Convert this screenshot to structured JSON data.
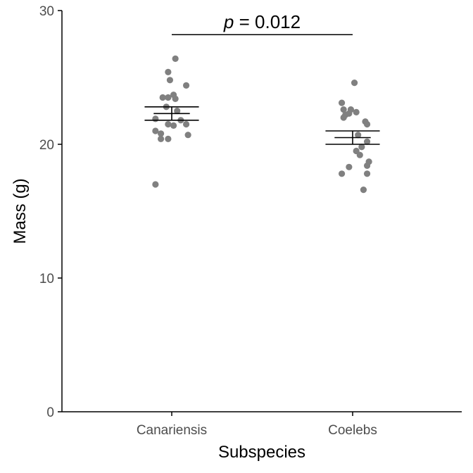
{
  "chart_data": {
    "type": "scatter",
    "xlabel": "Subspecies",
    "ylabel": "Mass (g)",
    "ylim": [
      0,
      30
    ],
    "yticks": [
      0,
      10,
      20,
      30
    ],
    "categories": [
      "Canariensis",
      "Coelebs"
    ],
    "grid": false,
    "point_color": "#808080",
    "line_color": "#000000",
    "groups": [
      {
        "category": "Canariensis",
        "mean": 22.3,
        "ci_lower": 21.8,
        "ci_upper": 22.8,
        "points": [
          {
            "jitter": 0.02,
            "value": 26.4
          },
          {
            "jitter": -0.02,
            "value": 25.4
          },
          {
            "jitter": -0.01,
            "value": 24.8
          },
          {
            "jitter": 0.08,
            "value": 24.4
          },
          {
            "jitter": 0.01,
            "value": 23.7
          },
          {
            "jitter": -0.05,
            "value": 23.5
          },
          {
            "jitter": -0.02,
            "value": 23.5
          },
          {
            "jitter": 0.02,
            "value": 23.4
          },
          {
            "jitter": -0.03,
            "value": 22.8
          },
          {
            "jitter": 0.03,
            "value": 22.5
          },
          {
            "jitter": -0.09,
            "value": 21.9
          },
          {
            "jitter": 0.05,
            "value": 21.8
          },
          {
            "jitter": 0.08,
            "value": 21.5
          },
          {
            "jitter": -0.02,
            "value": 21.5
          },
          {
            "jitter": 0.01,
            "value": 21.4
          },
          {
            "jitter": -0.09,
            "value": 21.0
          },
          {
            "jitter": -0.06,
            "value": 20.8
          },
          {
            "jitter": 0.09,
            "value": 20.7
          },
          {
            "jitter": -0.02,
            "value": 20.4
          },
          {
            "jitter": -0.06,
            "value": 20.4
          },
          {
            "jitter": -0.09,
            "value": 17.0
          }
        ]
      },
      {
        "category": "Coelebs",
        "mean": 20.5,
        "ci_lower": 20.0,
        "ci_upper": 21.0,
        "points": [
          {
            "jitter": 0.01,
            "value": 24.6
          },
          {
            "jitter": -0.06,
            "value": 23.1
          },
          {
            "jitter": -0.05,
            "value": 22.6
          },
          {
            "jitter": -0.01,
            "value": 22.6
          },
          {
            "jitter": 0.02,
            "value": 22.4
          },
          {
            "jitter": -0.02,
            "value": 22.3
          },
          {
            "jitter": -0.04,
            "value": 22.2
          },
          {
            "jitter": -0.05,
            "value": 22.0
          },
          {
            "jitter": 0.07,
            "value": 21.7
          },
          {
            "jitter": 0.08,
            "value": 21.5
          },
          {
            "jitter": 0.03,
            "value": 20.7
          },
          {
            "jitter": 0.08,
            "value": 20.2
          },
          {
            "jitter": 0.05,
            "value": 19.8
          },
          {
            "jitter": 0.02,
            "value": 19.5
          },
          {
            "jitter": 0.04,
            "value": 19.2
          },
          {
            "jitter": 0.09,
            "value": 18.7
          },
          {
            "jitter": 0.08,
            "value": 18.4
          },
          {
            "jitter": -0.02,
            "value": 18.3
          },
          {
            "jitter": -0.06,
            "value": 17.8
          },
          {
            "jitter": 0.08,
            "value": 17.8
          },
          {
            "jitter": 0.06,
            "value": 16.6
          }
        ]
      }
    ],
    "annotation": {
      "p_symbol": "p",
      "p_text": " = 0.012",
      "from": "Canariensis",
      "to": "Coelebs",
      "bracket_value": 28.2
    }
  }
}
